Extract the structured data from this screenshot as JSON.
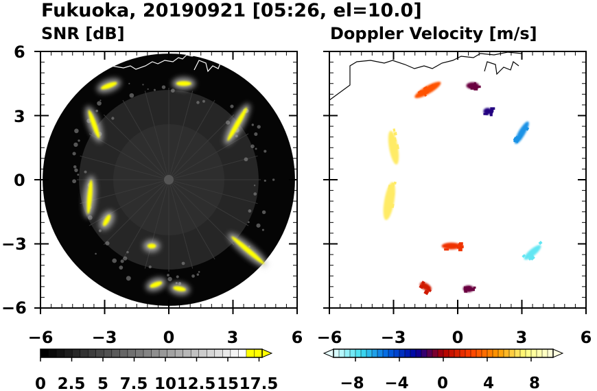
{
  "title": "Fukuoka, 20190921 [05:26, el=10.0]",
  "chart_data": [
    {
      "type": "heatmap",
      "title": "SNR [dB]",
      "xlim": [
        -6,
        6
      ],
      "ylim": [
        -6,
        6
      ],
      "x_ticks": [
        "−6",
        "−3",
        "0",
        "3",
        "6"
      ],
      "y_ticks": [
        "6",
        "3",
        "0",
        "−3",
        "−6"
      ],
      "colorbar": {
        "range": [
          0,
          20
        ],
        "tick_labels": [
          "0",
          "2.5",
          "5",
          "7.5",
          "10",
          "12.5",
          "15",
          "17.5"
        ],
        "colors": [
          "#000000",
          "#ffffff",
          "#ffff00"
        ]
      },
      "echo_regions": [
        {
          "x": 3.2,
          "y": 2.6,
          "length": 1.8,
          "angle": 60
        },
        {
          "x": 3.7,
          "y": -3.3,
          "length": 2.0,
          "angle": -40
        },
        {
          "x": -3.5,
          "y": 2.6,
          "length": 1.4,
          "angle": 110
        },
        {
          "x": -3.7,
          "y": -0.8,
          "length": 1.6,
          "angle": 85
        },
        {
          "x": -2.8,
          "y": 4.4,
          "length": 0.8,
          "angle": 20
        },
        {
          "x": 0.7,
          "y": 4.5,
          "length": 0.7,
          "angle": 0
        },
        {
          "x": -2.9,
          "y": -1.9,
          "length": 0.6,
          "angle": 60
        },
        {
          "x": -0.6,
          "y": -4.9,
          "length": 0.6,
          "angle": 20
        },
        {
          "x": 0.5,
          "y": -5.1,
          "length": 0.6,
          "angle": -10
        },
        {
          "x": -0.8,
          "y": -3.1,
          "length": 0.4,
          "angle": 0
        }
      ]
    },
    {
      "type": "heatmap",
      "title": "Doppler Velocity [m/s]",
      "xlim": [
        -6,
        6
      ],
      "ylim": [
        -6,
        6
      ],
      "x_ticks": [
        "−6",
        "−3",
        "0",
        "3",
        "6"
      ],
      "y_ticks": [
        "6",
        "3",
        "0",
        "−3",
        "−6"
      ],
      "colorbar": {
        "range": [
          -10,
          10
        ],
        "tick_labels": [
          "−8",
          "−4",
          "0",
          "4",
          "8"
        ],
        "colors": [
          "#e8ffff",
          "#40e0f0",
          "#0060e0",
          "#0000a0",
          "#b00000",
          "#ff4000",
          "#ff9a00",
          "#ffff80",
          "#ffffe0"
        ]
      },
      "echo_regions": [
        {
          "x": 3.0,
          "y": 2.2,
          "length": 1.2,
          "angle": 60,
          "velocity": -6
        },
        {
          "x": 3.5,
          "y": -3.4,
          "length": 1.0,
          "angle": 40,
          "velocity": -8
        },
        {
          "x": -3.0,
          "y": 1.5,
          "length": 1.6,
          "angle": 100,
          "velocity": 7
        },
        {
          "x": -3.2,
          "y": -1.0,
          "length": 1.8,
          "angle": 80,
          "velocity": 7
        },
        {
          "x": -1.4,
          "y": 4.2,
          "length": 1.4,
          "angle": 30,
          "velocity": 3
        },
        {
          "x": 0.7,
          "y": 4.4,
          "length": 0.6,
          "angle": 0,
          "velocity": -1
        },
        {
          "x": -0.3,
          "y": -3.1,
          "length": 0.9,
          "angle": 0,
          "velocity": 2
        },
        {
          "x": 0.5,
          "y": -5.1,
          "length": 0.5,
          "angle": 0,
          "velocity": -1
        },
        {
          "x": -1.5,
          "y": -5.0,
          "length": 0.6,
          "angle": -30,
          "velocity": 1
        },
        {
          "x": 1.4,
          "y": 3.2,
          "length": 0.4,
          "angle": 0,
          "velocity": -2
        }
      ]
    }
  ]
}
